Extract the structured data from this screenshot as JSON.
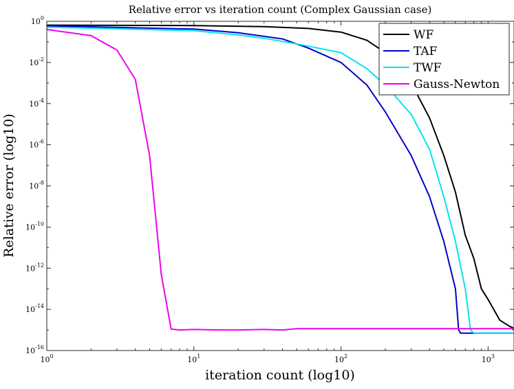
{
  "chart_data": {
    "type": "line",
    "title": "Relative error vs iteration count (Complex Gaussian case)",
    "xlabel": "iteration count (log10)",
    "ylabel": "Relative error (log10)",
    "xscale": "log",
    "yscale": "log",
    "xlim": [
      1,
      1500
    ],
    "ylim": [
      1e-16,
      1
    ],
    "grid": false,
    "legend_position": "top-right",
    "x_ticks": [
      {
        "value": 1,
        "base": "10",
        "exp": "0"
      },
      {
        "value": 10,
        "base": "10",
        "exp": "1"
      },
      {
        "value": 100,
        "base": "10",
        "exp": "2"
      },
      {
        "value": 1000,
        "base": "10",
        "exp": "3"
      }
    ],
    "y_ticks": [
      {
        "value": 1,
        "base": "10",
        "exp": "0"
      },
      {
        "value": 0.01,
        "base": "10",
        "exp": "-2"
      },
      {
        "value": 0.0001,
        "base": "10",
        "exp": "-4"
      },
      {
        "value": 1e-06,
        "base": "10",
        "exp": "-6"
      },
      {
        "value": 1e-08,
        "base": "10",
        "exp": "-8"
      },
      {
        "value": 1e-10,
        "base": "10",
        "exp": "-10"
      },
      {
        "value": 1e-12,
        "base": "10",
        "exp": "-12"
      },
      {
        "value": 1e-14,
        "base": "10",
        "exp": "-14"
      },
      {
        "value": 1e-16,
        "base": "10",
        "exp": "-16"
      }
    ],
    "series": [
      {
        "name": "WF",
        "color": "#000000",
        "points": [
          [
            1,
            0.65
          ],
          [
            10,
            0.62
          ],
          [
            30,
            0.55
          ],
          [
            60,
            0.45
          ],
          [
            100,
            0.3
          ],
          [
            150,
            0.12
          ],
          [
            200,
            0.03
          ],
          [
            300,
            0.001
          ],
          [
            400,
            2e-05
          ],
          [
            500,
            3e-07
          ],
          [
            600,
            5e-09
          ],
          [
            700,
            4e-11
          ],
          [
            800,
            3e-12
          ],
          [
            900,
            1e-13
          ],
          [
            1000,
            3e-14
          ],
          [
            1200,
            3e-15
          ],
          [
            1400,
            1.5e-15
          ],
          [
            1500,
            1.2e-15
          ]
        ]
      },
      {
        "name": "TAF",
        "color": "#0000cc",
        "points": [
          [
            1,
            0.6
          ],
          [
            10,
            0.42
          ],
          [
            20,
            0.28
          ],
          [
            40,
            0.14
          ],
          [
            60,
            0.05
          ],
          [
            100,
            0.01
          ],
          [
            150,
            0.0008
          ],
          [
            200,
            4e-05
          ],
          [
            300,
            3e-07
          ],
          [
            400,
            3e-09
          ],
          [
            500,
            2e-11
          ],
          [
            600,
            1e-13
          ],
          [
            630,
            1e-15
          ],
          [
            650,
            7e-16
          ],
          [
            1500,
            7e-16
          ]
        ]
      },
      {
        "name": "TWF",
        "color": "#00e5ee",
        "points": [
          [
            1,
            0.52
          ],
          [
            10,
            0.35
          ],
          [
            20,
            0.22
          ],
          [
            30,
            0.15
          ],
          [
            50,
            0.08
          ],
          [
            100,
            0.03
          ],
          [
            150,
            0.005
          ],
          [
            200,
            0.0008
          ],
          [
            300,
            3e-05
          ],
          [
            400,
            6e-07
          ],
          [
            500,
            3e-09
          ],
          [
            600,
            2e-11
          ],
          [
            700,
            1e-13
          ],
          [
            760,
            1e-15
          ],
          [
            800,
            7e-16
          ],
          [
            1500,
            7e-16
          ]
        ]
      },
      {
        "name": "Gauss-Newton",
        "color": "#ee00ee",
        "points": [
          [
            1,
            0.4
          ],
          [
            2,
            0.2
          ],
          [
            3,
            0.04
          ],
          [
            4,
            0.0015
          ],
          [
            5,
            3e-07
          ],
          [
            6,
            5e-13
          ],
          [
            7,
            1.1e-15
          ],
          [
            8,
            1e-15
          ],
          [
            10,
            1.05e-15
          ],
          [
            15,
            1e-15
          ],
          [
            20,
            1e-15
          ],
          [
            30,
            1.05e-15
          ],
          [
            40,
            1e-15
          ],
          [
            50,
            1.15e-15
          ],
          [
            100,
            1.15e-15
          ],
          [
            500,
            1.15e-15
          ],
          [
            1500,
            1.15e-15
          ]
        ]
      }
    ]
  }
}
